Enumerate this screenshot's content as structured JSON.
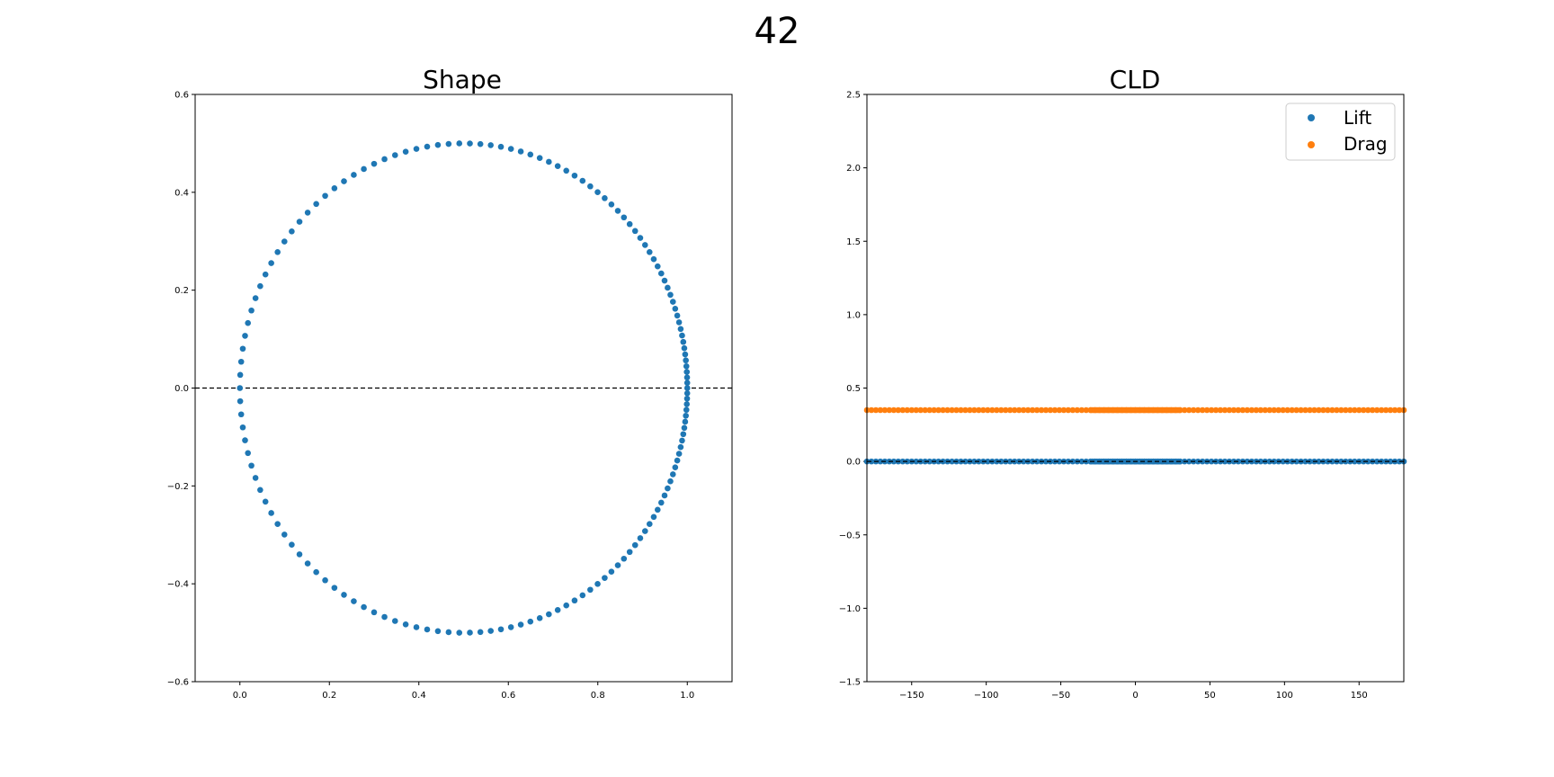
{
  "figure": {
    "title": "42"
  },
  "chart_data": [
    {
      "type": "scatter",
      "title": "Shape",
      "xlabel": "",
      "ylabel": "",
      "xlim": [
        -0.1,
        1.1
      ],
      "ylim": [
        -0.6,
        0.6
      ],
      "xticks": [
        "0.0",
        "0.2",
        "0.4",
        "0.6",
        "0.8",
        "1.0"
      ],
      "yticks": [
        "-0.6",
        "-0.4",
        "-0.2",
        "0.0",
        "0.2",
        "0.4",
        "0.6"
      ],
      "grid": false,
      "reference_line": {
        "axis": "y",
        "value": 0.0,
        "style": "dashed"
      },
      "series": [
        {
          "color": "#1f77b4",
          "shape": "circle",
          "center": [
            0.5,
            0.0
          ],
          "radius": 0.5,
          "point_count": 150,
          "spacing": "denser near x = 0"
        }
      ]
    },
    {
      "type": "scatter",
      "title": "CLD",
      "xlabel": "",
      "ylabel": "",
      "xlim": [
        -180,
        180
      ],
      "ylim": [
        -1.5,
        2.5
      ],
      "xticks": [
        "-150",
        "-100",
        "-50",
        "0",
        "50",
        "100",
        "150"
      ],
      "yticks": [
        "-1.5",
        "-1.0",
        "-0.5",
        "0.0",
        "0.5",
        "1.0",
        "1.5",
        "2.0",
        "2.5"
      ],
      "grid": false,
      "legend": {
        "position": "top-right"
      },
      "reference_line": {
        "axis": "y",
        "value": 0.0,
        "style": "dashed"
      },
      "series": [
        {
          "name": "Lift",
          "color": "#1f77b4",
          "y": 0.0,
          "x_range": [
            -180,
            180
          ],
          "x_step": 3,
          "dense_range": [
            -30,
            30
          ],
          "dense_step": 1
        },
        {
          "name": "Drag",
          "color": "#ff7f0e",
          "y": 0.35,
          "x_range": [
            -180,
            180
          ],
          "x_step": 3,
          "dense_range": [
            -30,
            30
          ],
          "dense_step": 1
        }
      ]
    }
  ]
}
